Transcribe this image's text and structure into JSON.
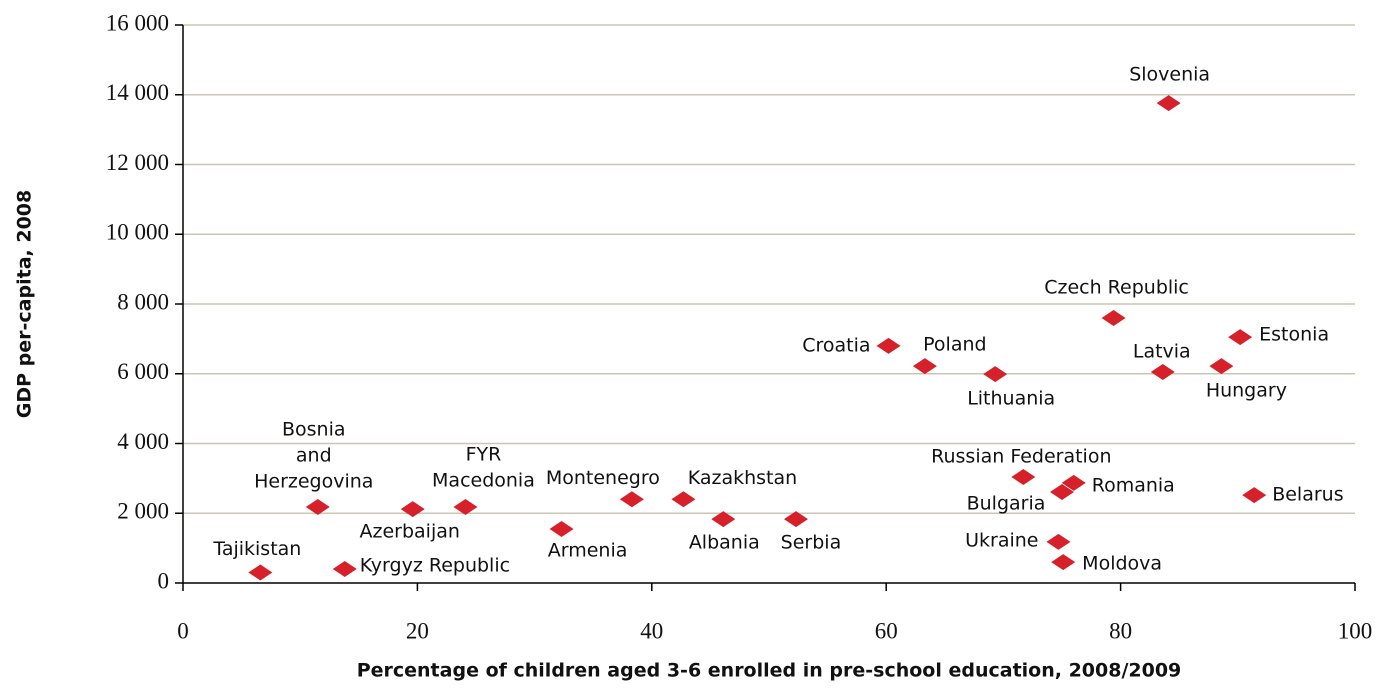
{
  "chart_data": {
    "type": "scatter",
    "xlabel": "Percentage of children aged 3-6 enrolled in pre-school education, 2008/2009",
    "ylabel": "GDP per-capita, 2008",
    "color": "#d7212a",
    "grid": true,
    "labels": [
      [
        "Tajikistan"
      ],
      [
        "Kyrgyz Republic"
      ],
      [
        "Bosnia",
        "and",
        "Herzegovina"
      ],
      [
        "Azerbaijan"
      ],
      [
        "FYR",
        "Macedonia"
      ],
      [
        "Armenia"
      ],
      [
        "Montenegro"
      ],
      [
        "Kazakhstan"
      ],
      [
        "Albania"
      ],
      [
        "Serbia"
      ],
      [
        "Croatia"
      ],
      [
        "Poland"
      ],
      [
        "Lithuania"
      ],
      [
        "Russian Federation"
      ],
      [
        "Bulgaria"
      ],
      [
        "Romania"
      ],
      [
        "Ukraine"
      ],
      [
        "Moldova"
      ],
      [
        "Czech Republic"
      ],
      [
        "Latvia"
      ],
      [
        "Slovenia"
      ],
      [
        "Hungary"
      ],
      [
        "Estonia"
      ],
      [
        "Belarus"
      ]
    ],
    "x": [
      6.6,
      13.8,
      11.5,
      19.6,
      24.1,
      32.3,
      38.3,
      42.7,
      46.1,
      52.3,
      60.2,
      63.3,
      69.3,
      71.7,
      75.0,
      76.0,
      74.7,
      75.1,
      79.4,
      83.6,
      84.1,
      88.6,
      90.2,
      91.4
    ],
    "y": [
      300,
      400,
      2180,
      2120,
      2180,
      1550,
      2400,
      2400,
      1830,
      1830,
      6800,
      6220,
      5990,
      3040,
      2610,
      2870,
      1180,
      600,
      7600,
      6050,
      13760,
      6220,
      7050,
      2520
    ],
    "xlim": [
      0,
      100
    ],
    "xticks": [
      0,
      20,
      40,
      60,
      80,
      100
    ],
    "ylim": [
      0,
      16000
    ],
    "yticks": [
      0,
      {
        "value": 2000,
        "label": "2 000"
      },
      {
        "value": 4000,
        "label": "4 000"
      },
      {
        "value": 6000,
        "label": "6 000"
      },
      {
        "value": 8000,
        "label": "8 000"
      },
      {
        "value": 10000,
        "label": "10 000"
      },
      {
        "value": 12000,
        "label": "12 000"
      },
      {
        "value": 14000,
        "label": "14 000"
      },
      {
        "value": 16000,
        "label": "16 000"
      }
    ]
  }
}
